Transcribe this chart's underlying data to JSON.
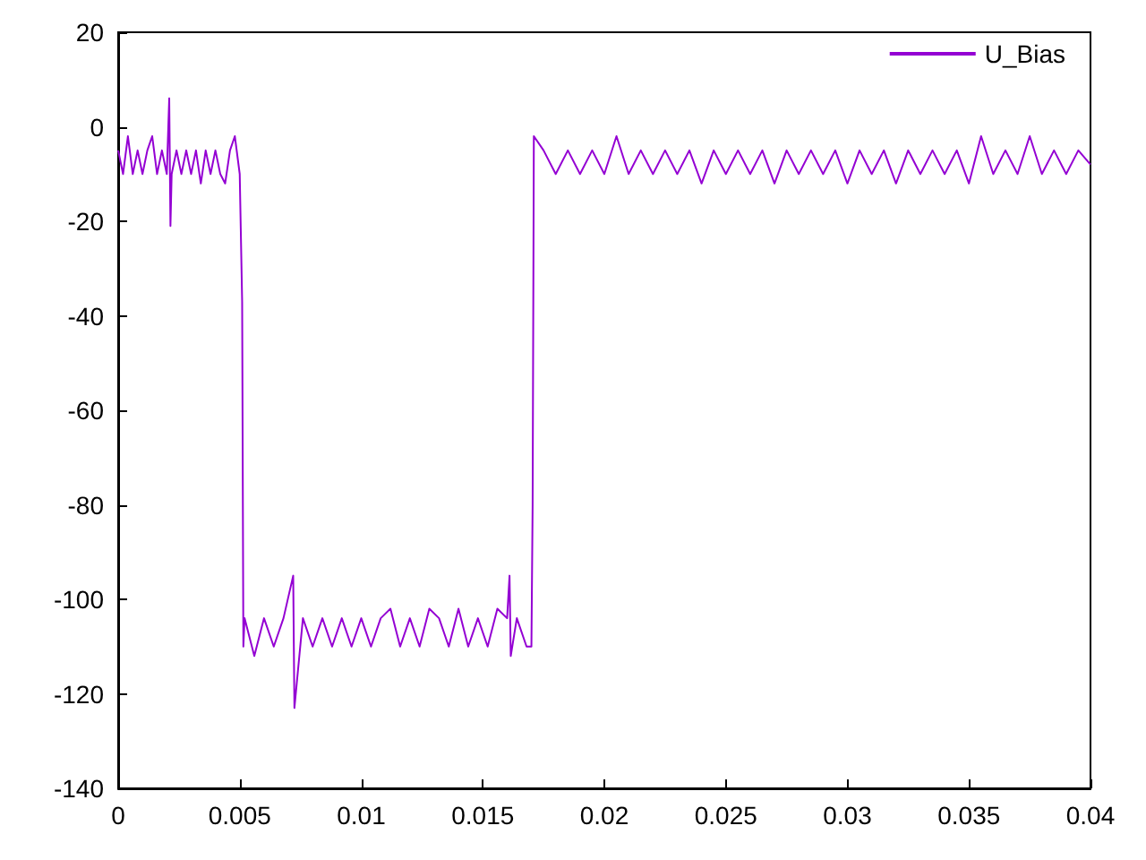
{
  "chart_data": {
    "type": "line",
    "xlim": [
      0,
      0.04
    ],
    "ylim": [
      -140,
      20
    ],
    "xticks": [
      0,
      0.005,
      0.01,
      0.015,
      0.02,
      0.025,
      0.03,
      0.035,
      0.04
    ],
    "yticks": [
      -140,
      -120,
      -100,
      -80,
      -60,
      -40,
      -20,
      0,
      20
    ],
    "legend": "top right",
    "grid": false,
    "marker": "none",
    "series": [
      {
        "name": "U_Bias",
        "color": "#9400d3",
        "x": [
          0,
          0.0002,
          0.0004,
          0.0006,
          0.0008,
          0.001,
          0.0012,
          0.0014,
          0.0016,
          0.0018,
          0.002,
          0.0021,
          0.00215,
          0.0022,
          0.0024,
          0.0026,
          0.0028,
          0.003,
          0.0032,
          0.0034,
          0.0036,
          0.0038,
          0.004,
          0.0042,
          0.0044,
          0.0046,
          0.0048,
          0.005,
          0.0051,
          0.00515,
          0.0052,
          0.0056,
          0.006,
          0.0064,
          0.0068,
          0.0072,
          0.00725,
          0.0076,
          0.008,
          0.0084,
          0.0088,
          0.0092,
          0.0096,
          0.01,
          0.0104,
          0.0108,
          0.0112,
          0.0116,
          0.012,
          0.0124,
          0.0128,
          0.0132,
          0.0136,
          0.014,
          0.0144,
          0.0148,
          0.0152,
          0.0156,
          0.016,
          0.0161,
          0.01615,
          0.0164,
          0.0168,
          0.017,
          0.01705,
          0.0171,
          0.0175,
          0.018,
          0.0185,
          0.019,
          0.0195,
          0.02,
          0.0205,
          0.021,
          0.0215,
          0.022,
          0.0225,
          0.023,
          0.0235,
          0.024,
          0.0245,
          0.025,
          0.0255,
          0.026,
          0.0265,
          0.027,
          0.0275,
          0.028,
          0.0285,
          0.029,
          0.0295,
          0.03,
          0.0305,
          0.031,
          0.0315,
          0.032,
          0.0325,
          0.033,
          0.0335,
          0.034,
          0.0345,
          0.035,
          0.0355,
          0.036,
          0.0365,
          0.037,
          0.0375,
          0.038,
          0.0385,
          0.039,
          0.0395,
          0.04
        ],
        "values": [
          -5,
          -10,
          -2,
          -10,
          -5,
          -10,
          -5,
          -2,
          -10,
          -5,
          -10,
          6,
          -21,
          -10,
          -5,
          -10,
          -5,
          -10,
          -5,
          -12,
          -5,
          -10,
          -5,
          -10,
          -12,
          -5,
          -2,
          -10,
          -37,
          -110,
          -104,
          -112,
          -104,
          -110,
          -104,
          -95,
          -123,
          -104,
          -110,
          -104,
          -110,
          -104,
          -110,
          -104,
          -110,
          -104,
          -102,
          -110,
          -104,
          -110,
          -102,
          -104,
          -110,
          -102,
          -110,
          -104,
          -110,
          -102,
          -104,
          -95,
          -112,
          -104,
          -110,
          -110,
          -80,
          -2,
          -5,
          -10,
          -5,
          -10,
          -5,
          -10,
          -2,
          -10,
          -5,
          -10,
          -5,
          -10,
          -5,
          -12,
          -5,
          -10,
          -5,
          -10,
          -5,
          -12,
          -5,
          -10,
          -5,
          -10,
          -5,
          -12,
          -5,
          -10,
          -5,
          -12,
          -5,
          -10,
          -5,
          -10,
          -5,
          -12,
          -2,
          -10,
          -5,
          -10,
          -2,
          -10,
          -5,
          -10,
          -5,
          -8
        ]
      }
    ]
  }
}
